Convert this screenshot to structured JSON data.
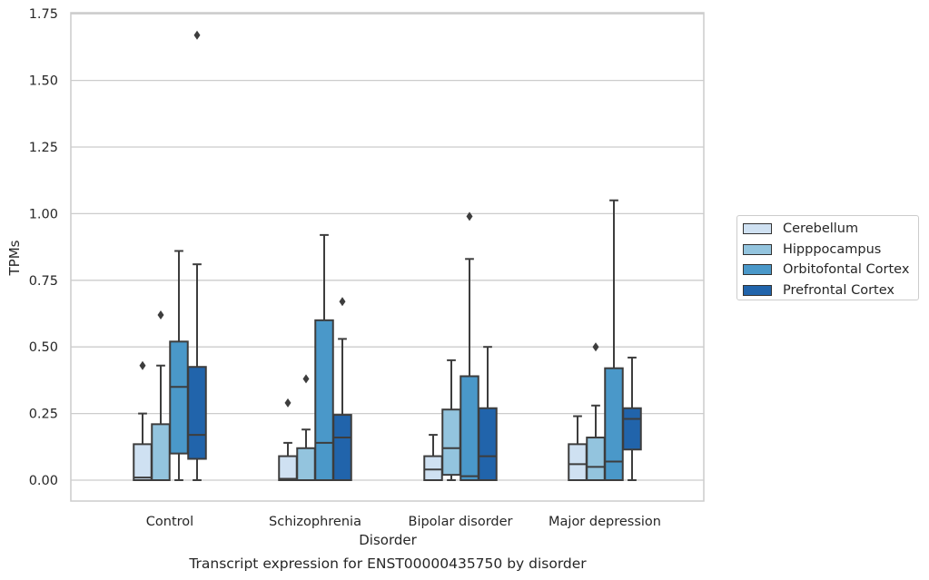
{
  "chart_data": {
    "type": "box",
    "title": "Transcript expression for ENST00000435750 by disorder",
    "xlabel": "Disorder",
    "ylabel": "TPMs",
    "ylim": [
      -0.08,
      1.76
    ],
    "yticks": [
      "0.00",
      "0.25",
      "0.50",
      "0.75",
      "1.00",
      "1.25",
      "1.50",
      "1.75"
    ],
    "grid": "horizontal",
    "legend_position": "right",
    "categories": [
      "Control",
      "Schizophrenia",
      "Bipolar disorder",
      "Major depression"
    ],
    "series": [
      {
        "name": "Cerebellum",
        "color": "#cfe1f2",
        "boxes": [
          {
            "whisker_low": 0.0,
            "q1": 0.0,
            "median": 0.01,
            "q3": 0.135,
            "whisker_high": 0.25,
            "outliers": [
              0.43
            ]
          },
          {
            "whisker_low": 0.0,
            "q1": 0.0,
            "median": 0.005,
            "q3": 0.09,
            "whisker_high": 0.14,
            "outliers": [
              0.29
            ]
          },
          {
            "whisker_low": 0.0,
            "q1": 0.0,
            "median": 0.04,
            "q3": 0.09,
            "whisker_high": 0.17,
            "outliers": []
          },
          {
            "whisker_low": 0.0,
            "q1": 0.0,
            "median": 0.06,
            "q3": 0.135,
            "whisker_high": 0.24,
            "outliers": []
          }
        ]
      },
      {
        "name": "Hipppocampus",
        "color": "#93c4de",
        "boxes": [
          {
            "whisker_low": 0.0,
            "q1": 0.0,
            "median": 0.0,
            "q3": 0.21,
            "whisker_high": 0.43,
            "outliers": [
              0.62
            ]
          },
          {
            "whisker_low": 0.0,
            "q1": 0.0,
            "median": 0.0,
            "q3": 0.12,
            "whisker_high": 0.19,
            "outliers": [
              0.38
            ]
          },
          {
            "whisker_low": 0.0,
            "q1": 0.02,
            "median": 0.12,
            "q3": 0.265,
            "whisker_high": 0.45,
            "outliers": []
          },
          {
            "whisker_low": 0.0,
            "q1": 0.0,
            "median": 0.05,
            "q3": 0.16,
            "whisker_high": 0.28,
            "outliers": [
              0.5
            ]
          }
        ]
      },
      {
        "name": "Orbitofontal Cortex",
        "color": "#4a98c9",
        "boxes": [
          {
            "whisker_low": 0.0,
            "q1": 0.1,
            "median": 0.35,
            "q3": 0.52,
            "whisker_high": 0.86,
            "outliers": []
          },
          {
            "whisker_low": 0.0,
            "q1": 0.0,
            "median": 0.14,
            "q3": 0.6,
            "whisker_high": 0.92,
            "outliers": []
          },
          {
            "whisker_low": 0.0,
            "q1": 0.0,
            "median": 0.015,
            "q3": 0.39,
            "whisker_high": 0.83,
            "outliers": [
              0.99
            ]
          },
          {
            "whisker_low": 0.0,
            "q1": 0.0,
            "median": 0.07,
            "q3": 0.42,
            "whisker_high": 1.05,
            "outliers": []
          }
        ]
      },
      {
        "name": "Prefrontal Cortex",
        "color": "#2164ab",
        "boxes": [
          {
            "whisker_low": 0.0,
            "q1": 0.08,
            "median": 0.17,
            "q3": 0.425,
            "whisker_high": 0.81,
            "outliers": [
              1.67
            ]
          },
          {
            "whisker_low": 0.0,
            "q1": 0.0,
            "median": 0.16,
            "q3": 0.245,
            "whisker_high": 0.53,
            "outliers": [
              0.67
            ]
          },
          {
            "whisker_low": 0.0,
            "q1": 0.0,
            "median": 0.09,
            "q3": 0.27,
            "whisker_high": 0.5,
            "outliers": []
          },
          {
            "whisker_low": 0.0,
            "q1": 0.115,
            "median": 0.23,
            "q3": 0.27,
            "whisker_high": 0.46,
            "outliers": []
          }
        ]
      }
    ]
  }
}
